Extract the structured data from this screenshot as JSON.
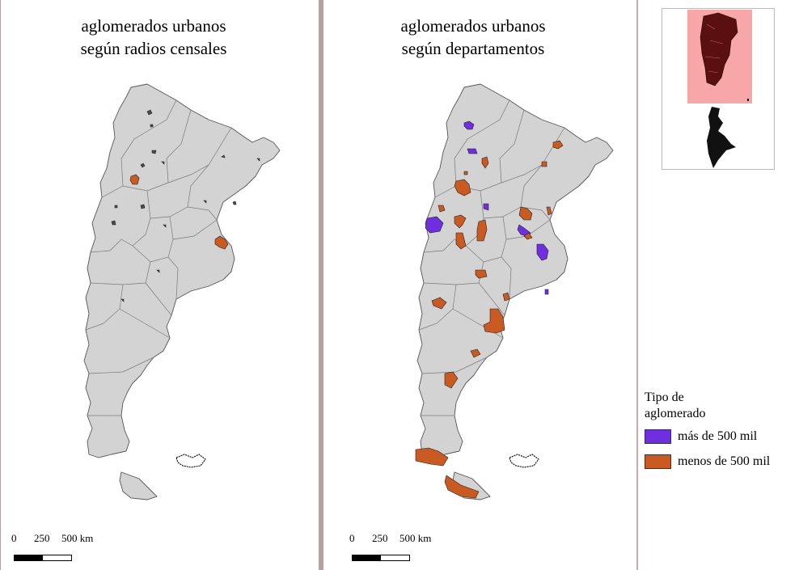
{
  "panels": [
    {
      "title": "aglomerados urbanos\nsegún radios censales"
    },
    {
      "title": "aglomerados urbanos\nsegún departamentos"
    }
  ],
  "scale": {
    "labels": [
      "0",
      "250",
      "500 km"
    ]
  },
  "legend": {
    "title": "Tipo de\naglomerado",
    "items": [
      {
        "label": "más de 500 mil",
        "color": "#6f2fe0"
      },
      {
        "label": "menos de 500 mil",
        "color": "#c95a22"
      }
    ]
  },
  "colors": {
    "land": "#d3d3d3",
    "border": "#7a7a7a",
    "small_agglomeration": "#4a4a4a",
    "large_category": "#6f2fe0",
    "small_category": "#c95a22",
    "inset_highlight": "#f7a7a7",
    "inset_country": "#5a1010",
    "panel_divider": "#b9a0a0"
  }
}
